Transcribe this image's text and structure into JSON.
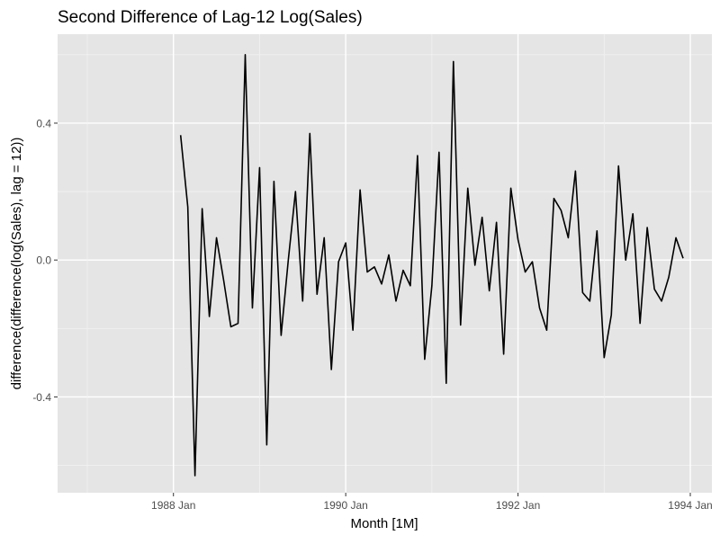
{
  "chart_data": {
    "type": "line",
    "title": "Second Difference of Lag-12 Log(Sales)",
    "xlabel": "Month [1M]",
    "ylabel": "difference(difference(log(Sales), lag = 12))",
    "x_tick_labels": [
      "1988 Jan",
      "1990 Jan",
      "1992 Jan",
      "1994 Jan"
    ],
    "y_tick_labels": [
      "-0.4",
      "0.0",
      "0.4"
    ],
    "y_ticks": [
      -0.4,
      0.0,
      0.4
    ],
    "ylim": [
      -0.68,
      0.66
    ],
    "xlim": [
      "1987 Jan",
      "1994 Jan"
    ],
    "grid": true,
    "colors": {
      "panel": "#e5e5e5",
      "grid": "#ffffff",
      "line": "#000000"
    },
    "x": [
      "1988 Feb",
      "1988 Mar",
      "1988 Apr",
      "1988 May",
      "1988 Jun",
      "1988 Jul",
      "1988 Aug",
      "1988 Sep",
      "1988 Oct",
      "1988 Nov",
      "1988 Dec",
      "1989 Jan",
      "1989 Feb",
      "1989 Mar",
      "1989 Apr",
      "1989 May",
      "1989 Jun",
      "1989 Jul",
      "1989 Aug",
      "1989 Sep",
      "1989 Oct",
      "1989 Nov",
      "1989 Dec",
      "1990 Jan",
      "1990 Feb",
      "1990 Mar",
      "1990 Apr",
      "1990 May",
      "1990 Jun",
      "1990 Jul",
      "1990 Aug",
      "1990 Sep",
      "1990 Oct",
      "1990 Nov",
      "1990 Dec",
      "1991 Jan",
      "1991 Feb",
      "1991 Mar",
      "1991 Apr",
      "1991 May",
      "1991 Jun",
      "1991 Jul",
      "1991 Aug",
      "1991 Sep",
      "1991 Oct",
      "1991 Nov",
      "1991 Dec",
      "1992 Jan",
      "1992 Feb",
      "1992 Mar",
      "1992 Apr",
      "1992 May",
      "1992 Jun",
      "1992 Jul",
      "1992 Aug",
      "1992 Sep",
      "1992 Oct",
      "1992 Nov",
      "1992 Dec",
      "1993 Jan",
      "1993 Feb",
      "1993 Mar",
      "1993 Apr",
      "1993 May",
      "1993 Jun",
      "1993 Jul",
      "1993 Aug",
      "1993 Sep",
      "1993 Oct",
      "1993 Nov",
      "1993 Dec"
    ],
    "series": [
      {
        "values": [
          0.365,
          0.155,
          -0.63,
          0.15,
          -0.165,
          0.065,
          -0.06,
          -0.195,
          -0.185,
          0.6,
          -0.14,
          0.27,
          -0.54,
          0.23,
          -0.22,
          0.0,
          0.2,
          -0.12,
          0.37,
          -0.1,
          0.065,
          -0.32,
          -0.005,
          0.05,
          -0.205,
          0.205,
          -0.035,
          -0.02,
          -0.07,
          0.015,
          -0.12,
          -0.03,
          -0.075,
          0.305,
          -0.29,
          -0.075,
          0.315,
          -0.36,
          0.58,
          -0.19,
          0.21,
          -0.015,
          0.125,
          -0.09,
          0.11,
          -0.275,
          0.21,
          0.06,
          -0.035,
          -0.005,
          -0.14,
          -0.205,
          0.18,
          0.145,
          0.065,
          0.26,
          -0.095,
          -0.12,
          0.085,
          -0.285,
          -0.16,
          0.275,
          0.0,
          0.135,
          -0.185,
          0.095,
          -0.085,
          -0.12,
          -0.05,
          0.065,
          0.005
        ]
      }
    ]
  }
}
